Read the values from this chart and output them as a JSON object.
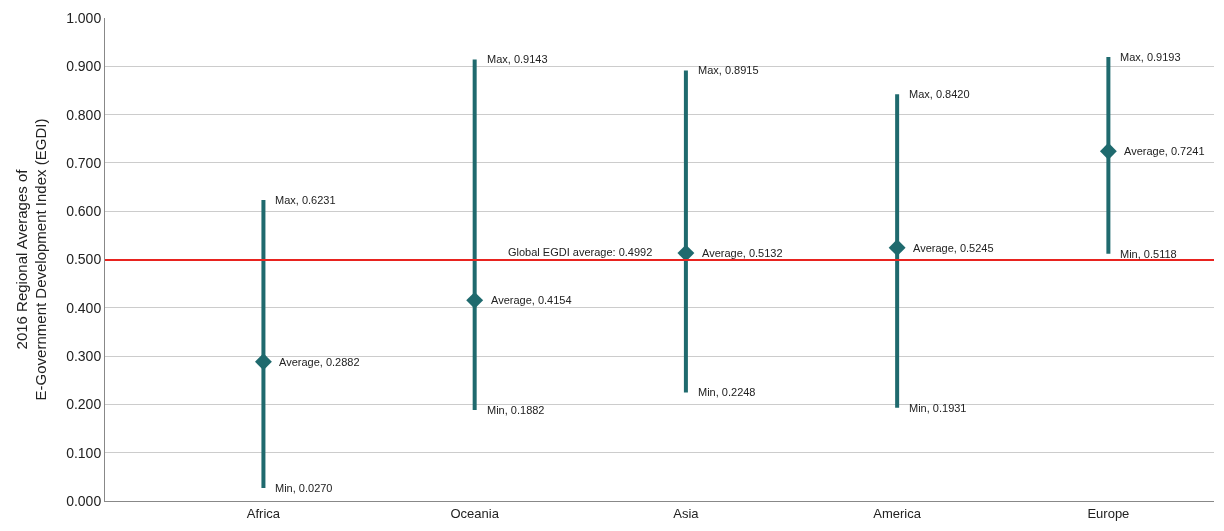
{
  "chart_data": {
    "type": "scatter",
    "ylabel": "2016 Regional Averages of\nE-Government Development Index (EGDI)",
    "categories": [
      "Africa",
      "Oceania",
      "Asia",
      "America",
      "Europe"
    ],
    "series": [
      {
        "color": "#1f6a6e",
        "values": [
          0.2882,
          0.4154,
          0.5132,
          0.5245,
          0.7241
        ],
        "errors": [
          [
            0.027,
            0.6231
          ],
          [
            0.1882,
            0.9143
          ],
          [
            0.2248,
            0.8915
          ],
          [
            0.1931,
            0.842
          ],
          [
            0.5118,
            0.9193
          ]
        ],
        "value_labels": [
          "Average, 0.2882",
          "Average, 0.4154",
          "Average, 0.5132",
          "Average, 0.5245",
          "Average, 0.7241"
        ]
      }
    ],
    "annotations": [
      {
        "text": "Max, 0.6231",
        "x": "Africa",
        "y": 0.6231
      },
      {
        "text": "Min, 0.0270",
        "x": "Africa",
        "y": 0.027
      },
      {
        "text": "Max, 0.9143",
        "x": "Oceania",
        "y": 0.9143
      },
      {
        "text": "Min, 0.1882",
        "x": "Oceania",
        "y": 0.1882
      },
      {
        "text": "Max, 0.8915",
        "x": "Asia",
        "y": 0.8915
      },
      {
        "text": "Min, 0.2248",
        "x": "Asia",
        "y": 0.2248
      },
      {
        "text": "Max, 0.8420",
        "x": "America",
        "y": 0.842
      },
      {
        "text": "Min, 0.1931",
        "x": "America",
        "y": 0.1931
      },
      {
        "text": "Max, 0.9193",
        "x": "Europe",
        "y": 0.9193
      },
      {
        "text": "Min, 0.5118",
        "x": "Europe",
        "y": 0.5118
      }
    ],
    "ref_lines": [
      {
        "axis": "y",
        "value": 0.4992,
        "label": "Global EGDI average: 0.4992",
        "color": "#e8231f"
      }
    ],
    "ylim": [
      0,
      1
    ],
    "yticks": [
      {
        "value": 0,
        "label": "0.000"
      },
      {
        "value": 0.1,
        "label": "0.100"
      },
      {
        "value": 0.2,
        "label": "0.200"
      },
      {
        "value": 0.3,
        "label": "0.300"
      },
      {
        "value": 0.4,
        "label": "0.400"
      },
      {
        "value": 0.5,
        "label": "0.500"
      },
      {
        "value": 0.6,
        "label": "0.600"
      },
      {
        "value": 0.7,
        "label": "0.700"
      },
      {
        "value": 0.8,
        "label": "0.800"
      },
      {
        "value": 0.9,
        "label": "0.900"
      },
      {
        "value": 1,
        "label": "1.000"
      }
    ],
    "grid": "y",
    "legend": false,
    "marker": "diamond"
  }
}
